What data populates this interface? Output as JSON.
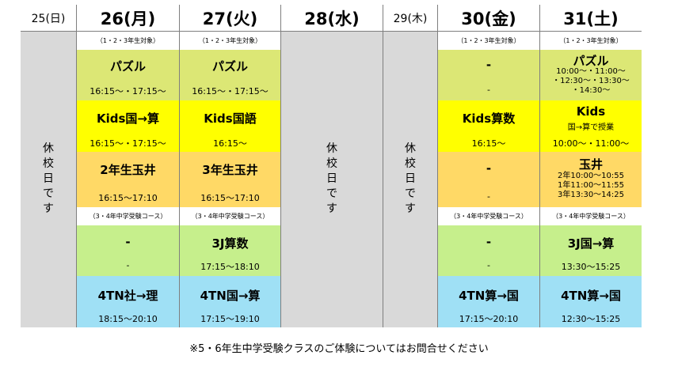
{
  "days": {
    "d25": {
      "label": "25(日)",
      "closed_text": [
        "休",
        "校",
        "日",
        "で",
        "す"
      ]
    },
    "d26": {
      "label": "26(月)",
      "note_top": "（1・2・3年生対象）",
      "slot1": {
        "title": "パズル",
        "time": "16:15～・17:15～"
      },
      "slot2": {
        "title": "Kids国→算",
        "time": "16:15～・17:15～"
      },
      "slot3": {
        "title": "2年生玉井",
        "time": "16:15～17:10"
      },
      "note_mid": "（3・4年中学受験コース）",
      "slot4": {
        "title": "-",
        "time": "-"
      },
      "slot5": {
        "title": "4TN社→理",
        "time": "18:15～20:10"
      }
    },
    "d27": {
      "label": "27(火)",
      "note_top": "（1・2・3年生対象）",
      "slot1": {
        "title": "パズル",
        "time": "16:15～・17:15～"
      },
      "slot2": {
        "title": "Kids国語",
        "time": "16:15～"
      },
      "slot3": {
        "title": "3年生玉井",
        "time": "16:15～17:10"
      },
      "note_mid": "（3・4年中学受験コース）",
      "slot4": {
        "title": "3J算数",
        "time": "17:15～18:10"
      },
      "slot5": {
        "title": "4TN国→算",
        "time": "17:15～19:10"
      }
    },
    "d28": {
      "label": "28(水)",
      "closed_text": [
        "休",
        "校",
        "日",
        "で",
        "す"
      ]
    },
    "d29": {
      "label": "29(木)",
      "closed_text": [
        "休",
        "校",
        "日",
        "で",
        "す"
      ]
    },
    "d30": {
      "label": "30(金)",
      "note_top": "（1・2・3年生対象）",
      "slot1": {
        "title": "-",
        "time": "-"
      },
      "slot2": {
        "title": "Kids算数",
        "time": "16:15～"
      },
      "slot3": {
        "title": "-",
        "time": "-"
      },
      "note_mid": "（3・4年中学受験コース）",
      "slot4": {
        "title": "-",
        "time": "-"
      },
      "slot5": {
        "title": "4TN算→国",
        "time": "17:15～20:10"
      }
    },
    "d31": {
      "label": "31(土)",
      "note_top": "（1・2・3年生対象）",
      "slot1": {
        "title": "パズル",
        "line1": "10:00～・11:00～",
        "line2": "・12:30～・13:30～",
        "line3": "・14:30～"
      },
      "slot2": {
        "title": "Kids",
        "sub": "国→算で授業",
        "time": "10:00～・11:00～"
      },
      "slot3": {
        "title": "玉井",
        "line1": "2年10:00～10:55",
        "line2": "1年11:00～11:55",
        "line3": "3年13:30～14:25"
      },
      "note_mid": "（3・4年中学受験コース）",
      "slot4": {
        "title": "3J国→算",
        "time": "13:30～15:25"
      },
      "slot5": {
        "title": "4TN算→国",
        "time": "12:30～15:25"
      }
    }
  },
  "footer": "※5・6年生中学受験クラスのご体験についてはお問合せください"
}
